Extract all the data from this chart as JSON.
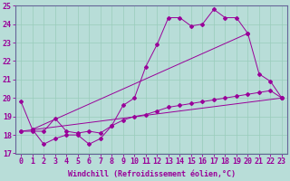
{
  "xlabel": "Windchill (Refroidissement éolien,°C)",
  "xlim": [
    -0.5,
    23.5
  ],
  "ylim": [
    17,
    25
  ],
  "xticks": [
    0,
    1,
    2,
    3,
    4,
    5,
    6,
    7,
    8,
    9,
    10,
    11,
    12,
    13,
    14,
    15,
    16,
    17,
    18,
    19,
    20,
    21,
    22,
    23
  ],
  "yticks": [
    17,
    18,
    19,
    20,
    21,
    22,
    23,
    24,
    25
  ],
  "background_color": "#b8ddd8",
  "grid_color": "#99ccbb",
  "line_color": "#990099",
  "fontsize": 6,
  "marker": "D",
  "markersize": 2.0,
  "lw": 0.7,
  "curve1_x": [
    0,
    1,
    2,
    3,
    4,
    5,
    6,
    7,
    8,
    9,
    10,
    11,
    12,
    13,
    14,
    15,
    16,
    17,
    18,
    19,
    20,
    21,
    22,
    23
  ],
  "curve1_y": [
    19.8,
    18.3,
    17.5,
    17.8,
    18.0,
    18.0,
    17.5,
    17.8,
    18.5,
    19.6,
    20.0,
    21.7,
    22.9,
    24.35,
    24.35,
    23.9,
    24.0,
    24.8,
    24.35,
    24.35,
    23.5,
    21.3,
    20.9,
    20.0
  ],
  "curve2_x": [
    0,
    1,
    2,
    3,
    4,
    5,
    6,
    7,
    8,
    9,
    10,
    11,
    12,
    13,
    14,
    15,
    16,
    17,
    18,
    19,
    20,
    21,
    22,
    23
  ],
  "curve2_y": [
    18.2,
    18.2,
    18.2,
    18.9,
    18.2,
    18.1,
    18.2,
    18.1,
    18.5,
    18.8,
    19.0,
    19.1,
    19.3,
    19.5,
    19.6,
    19.7,
    19.8,
    19.9,
    20.0,
    20.1,
    20.2,
    20.3,
    20.4,
    20.0
  ],
  "curve3_x": [
    0,
    23
  ],
  "curve3_y": [
    18.2,
    20.0
  ],
  "curve4_x": [
    1,
    20
  ],
  "curve4_y": [
    18.3,
    23.5
  ]
}
